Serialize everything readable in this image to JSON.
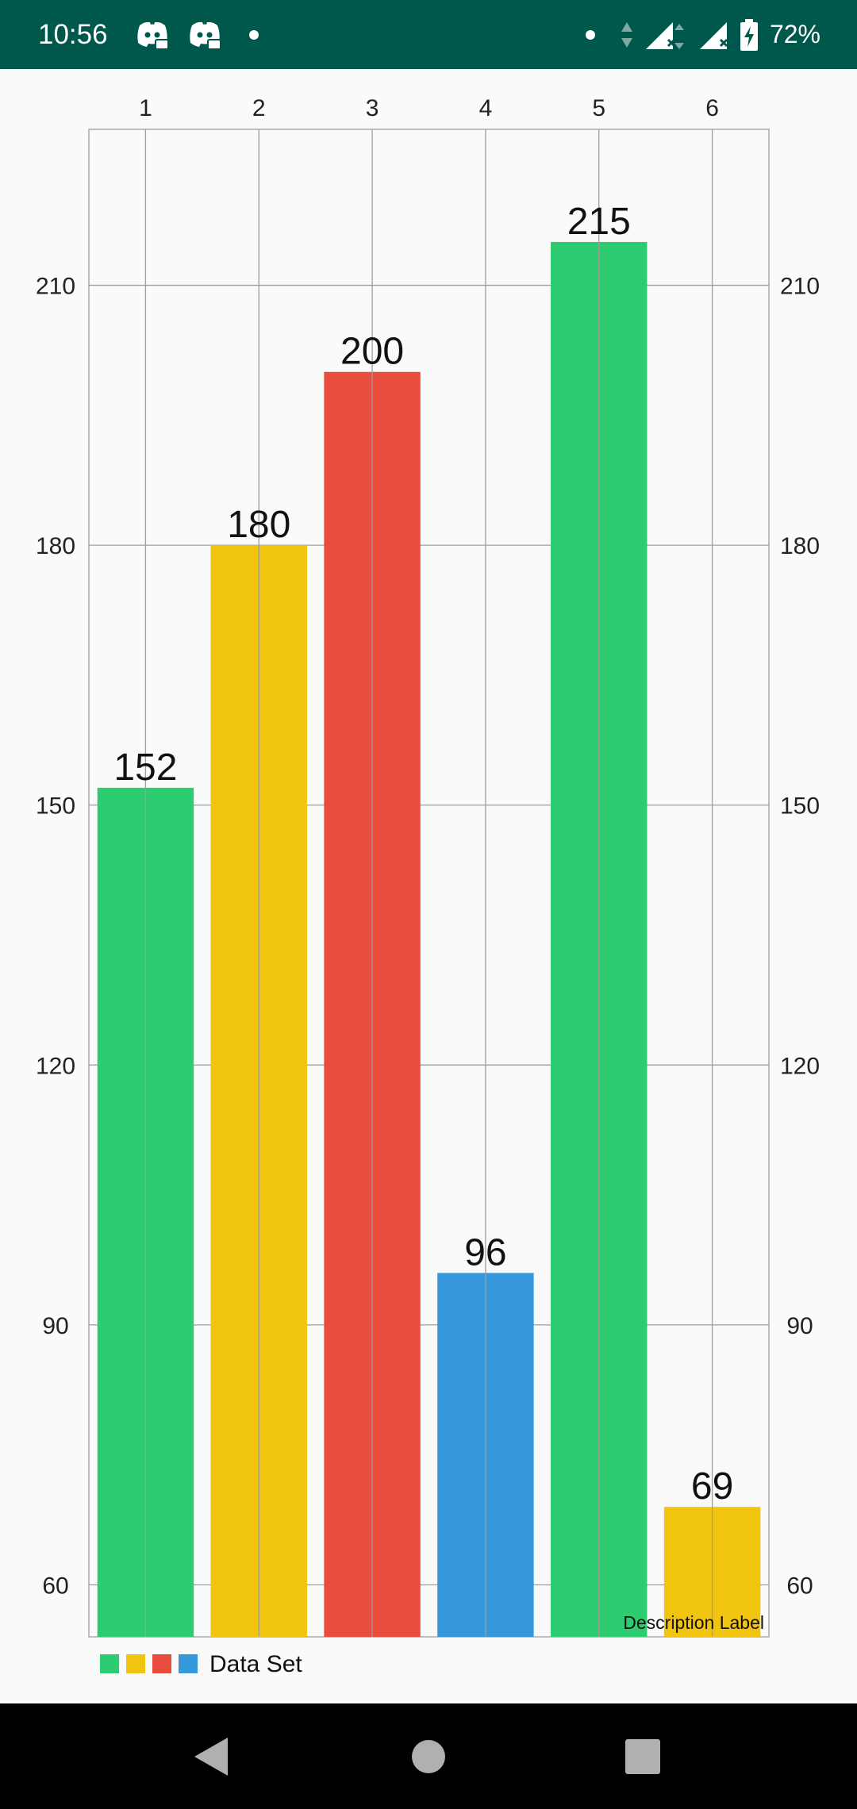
{
  "status_bar": {
    "time": "10:56",
    "battery": "72%",
    "icons": [
      "discord-icon",
      "discord-icon",
      "notification-dot-icon",
      "notification-dot-icon",
      "data-arrows-icon",
      "signal-no-service-icon",
      "signal-no-service-icon",
      "battery-charging-icon"
    ]
  },
  "chart_data": {
    "type": "bar",
    "categories": [
      "1",
      "2",
      "3",
      "4",
      "5",
      "6"
    ],
    "series": [
      {
        "name": "Data Set",
        "values": [
          152,
          180,
          200,
          96,
          215,
          69
        ],
        "colors": [
          "#2ecc71",
          "#f1c40f",
          "#e74c3c",
          "#3498db",
          "#2ecc71",
          "#f1c40f"
        ]
      }
    ],
    "ylim": [
      54,
      228
    ],
    "y_ticks": [
      60,
      90,
      120,
      150,
      180,
      210
    ],
    "x_axis_position": "top",
    "y_axes": [
      "left",
      "right"
    ],
    "grid": true,
    "data_labels": true,
    "legend": {
      "position": "bottom-left",
      "label": "Data Set",
      "swatch_colors": [
        "#2ecc71",
        "#f1c40f",
        "#e74c3c",
        "#3498db"
      ]
    },
    "description": "Description Label"
  },
  "nav_bar": {
    "buttons": [
      "back-icon",
      "home-icon",
      "recents-icon"
    ]
  }
}
